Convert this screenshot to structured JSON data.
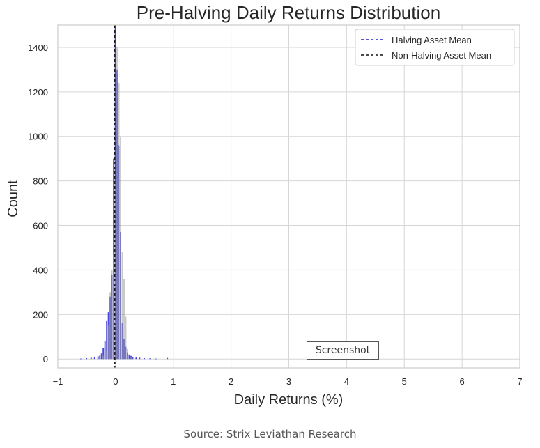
{
  "chart_data": {
    "type": "bar",
    "title": "Pre-Halving Daily Returns Distribution",
    "xlabel": "Daily Returns (%)",
    "ylabel": "Count",
    "xlim": [
      -1,
      7
    ],
    "ylim": [
      -40,
      1500
    ],
    "xticks": [
      "−1",
      "0",
      "1",
      "2",
      "3",
      "4",
      "5",
      "6",
      "7"
    ],
    "xtick_values": [
      -1,
      0,
      1,
      2,
      3,
      4,
      5,
      6,
      7
    ],
    "yticks": [
      "0",
      "200",
      "400",
      "600",
      "800",
      "1000",
      "1200",
      "1400"
    ],
    "ytick_values": [
      0,
      200,
      400,
      600,
      800,
      1000,
      1200,
      1400
    ],
    "grid": true,
    "legend_position": "top-right",
    "series": [
      {
        "name": "Halving Asset",
        "color": "#2a2ad6",
        "bin_width": 0.03,
        "x": [
          -0.6,
          -0.5,
          -0.42,
          -0.36,
          -0.3,
          -0.27,
          -0.24,
          -0.21,
          -0.18,
          -0.15,
          -0.12,
          -0.09,
          -0.06,
          -0.03,
          0.0,
          0.03,
          0.06,
          0.09,
          0.12,
          0.15,
          0.18,
          0.21,
          0.24,
          0.27,
          0.3,
          0.36,
          0.42,
          0.5,
          0.6,
          0.7,
          0.9
        ],
        "values": [
          2,
          4,
          6,
          8,
          12,
          15,
          25,
          50,
          80,
          170,
          210,
          280,
          380,
          900,
          1500,
          1300,
          960,
          570,
          160,
          90,
          55,
          30,
          20,
          14,
          10,
          8,
          6,
          4,
          3,
          2,
          5
        ]
      },
      {
        "name": "Non-Halving Asset",
        "color": "#9a9a9a",
        "bin_width": 0.03,
        "x": [
          -0.27,
          -0.21,
          -0.15,
          -0.12,
          -0.09,
          -0.06,
          -0.03,
          0.0,
          0.03,
          0.06,
          0.09,
          0.12,
          0.15,
          0.18,
          0.21,
          0.27
        ],
        "values": [
          5,
          15,
          40,
          150,
          300,
          400,
          470,
          800,
          1400,
          1240,
          1000,
          480,
          360,
          190,
          45,
          8
        ]
      }
    ],
    "mean_lines": [
      {
        "name": "Halving Asset Mean",
        "x": 0.0,
        "color": "#1f1fbf"
      },
      {
        "name": "Non-Halving Asset Mean",
        "x": -0.02,
        "color": "#111111"
      }
    ]
  },
  "overlay_label": "Screenshot",
  "source": "Source: Strix Leviathan Research"
}
